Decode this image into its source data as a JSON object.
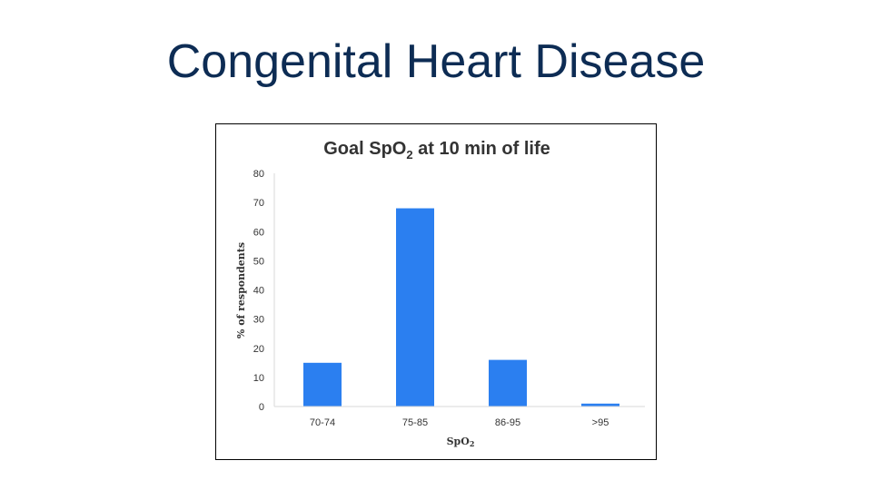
{
  "slide": {
    "title": "Congenital Heart Disease",
    "title_color": "#0d2c54"
  },
  "chart_data": {
    "type": "bar",
    "title_prefix": "Goal SpO",
    "title_sub": "2",
    "title_suffix": " at 10 min of life",
    "categories": [
      "70-74",
      "75-85",
      "86-95",
      ">95"
    ],
    "values": [
      15,
      68,
      16,
      1
    ],
    "xlabel_main": "SpO",
    "xlabel_sub": "2",
    "ylabel": "% of respondents",
    "ylim": [
      0,
      80
    ],
    "yticks": [
      0,
      10,
      20,
      30,
      40,
      50,
      60,
      70,
      80
    ],
    "grid": false,
    "legend": "none",
    "bar_color": "#2b7ff0"
  }
}
